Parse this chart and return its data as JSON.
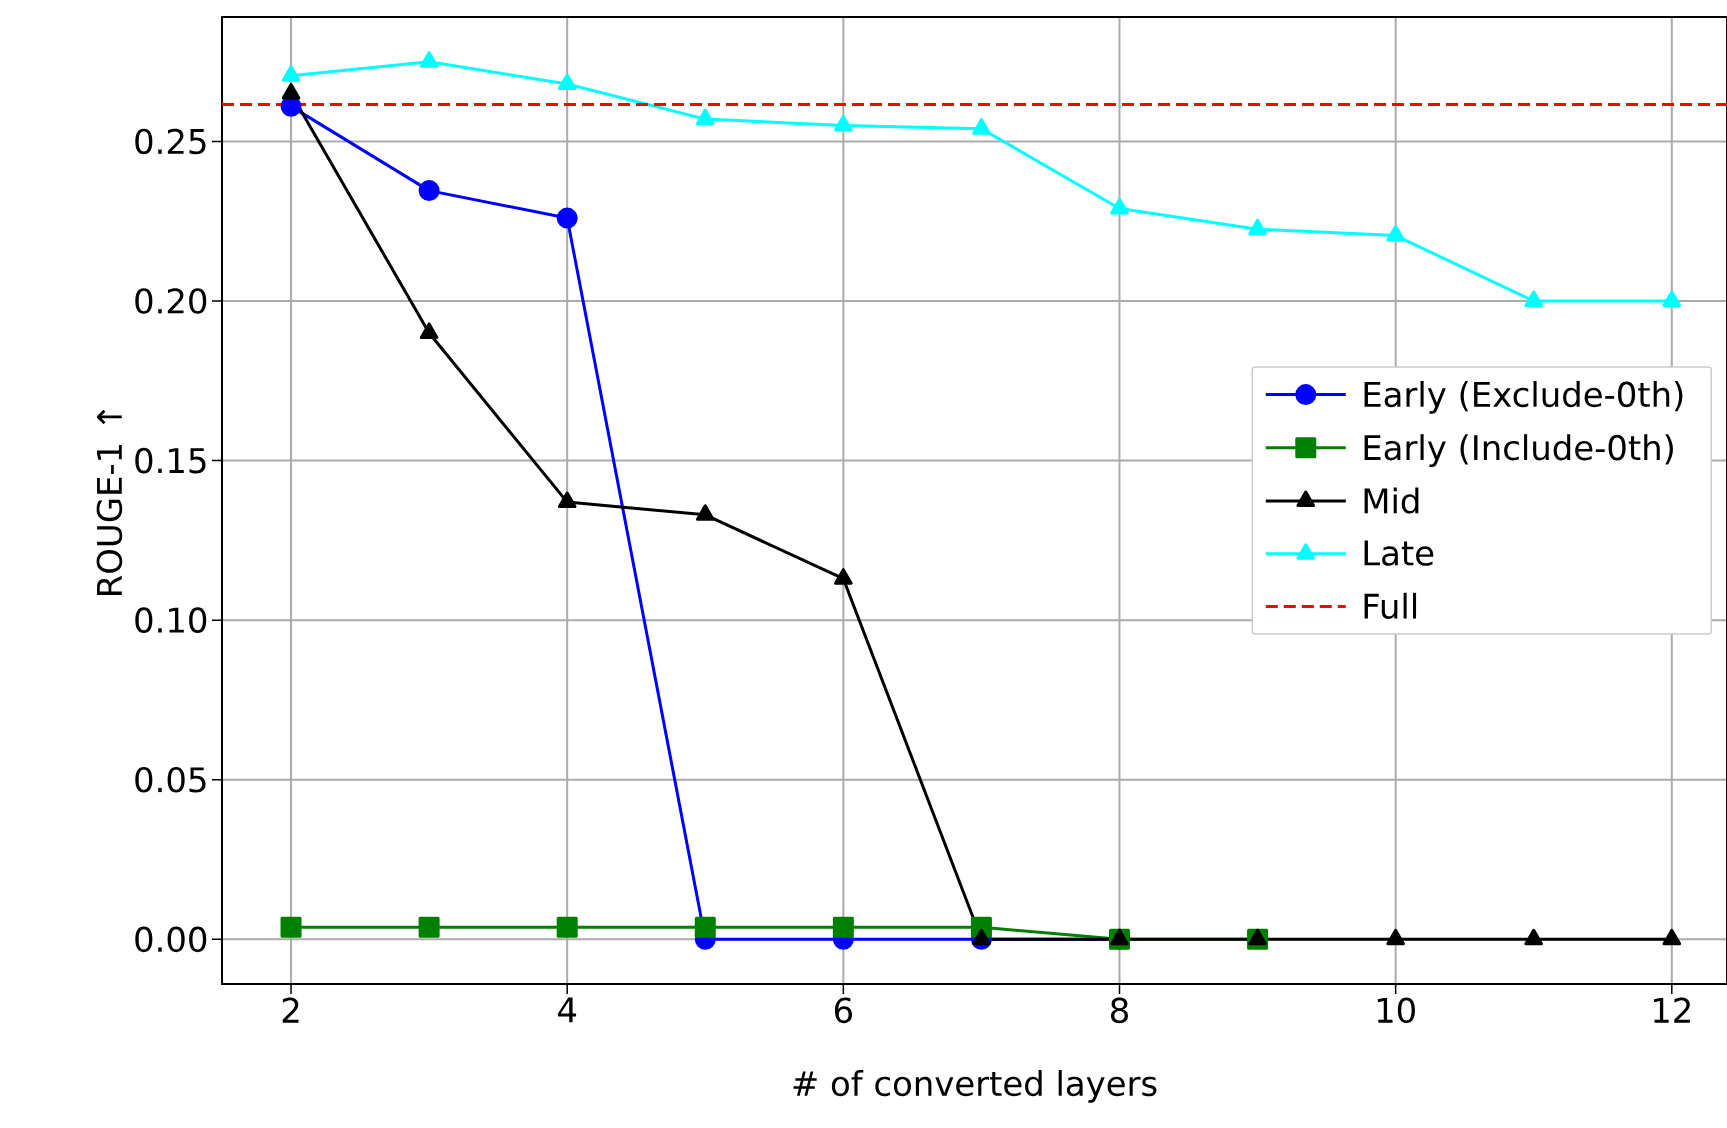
{
  "chart_data": {
    "type": "line",
    "xlabel": "# of converted layers",
    "ylabel": "ROUGE-1 ↑",
    "x": [
      2,
      3,
      4,
      5,
      6,
      7,
      8,
      9,
      10,
      11,
      12
    ],
    "series": [
      {
        "name": "Early (Exclude-0th)",
        "color": "#0000ff",
        "marker": "circle",
        "values": [
          0.261,
          0.2346,
          0.226,
          0,
          0,
          0,
          0,
          null,
          null,
          null,
          null
        ]
      },
      {
        "name": "Early (Include-0th)",
        "color": "#008000",
        "marker": "square",
        "values": [
          0.0038,
          0.0038,
          0.0038,
          0.0038,
          0.0038,
          0.0038,
          0,
          0,
          null,
          null,
          null
        ]
      },
      {
        "name": "Mid",
        "color": "#000000",
        "marker": "triangle",
        "values": [
          0.265,
          0.19,
          0.137,
          0.133,
          0.113,
          0,
          0,
          0,
          0,
          0,
          0
        ]
      },
      {
        "name": "Late",
        "color": "#00ffff",
        "marker": "triangle",
        "values": [
          0.2706,
          0.275,
          0.268,
          0.257,
          0.255,
          0.254,
          0.229,
          0.2225,
          0.2205,
          0.2,
          0.2
        ]
      }
    ],
    "ref_lines": [
      {
        "axis": "y",
        "value": 0.2616,
        "label": "Full",
        "color": "#ff0000",
        "line_style": "dashed"
      }
    ],
    "xlim": [
      1.5,
      12.4
    ],
    "ylim": [
      -0.014,
      0.289
    ],
    "xticks": [
      2,
      4,
      6,
      8,
      10,
      12
    ],
    "yticks": [
      {
        "value": 0,
        "label": "0.00"
      },
      {
        "value": 0.05,
        "label": "0.05"
      },
      {
        "value": 0.1,
        "label": "0.10"
      },
      {
        "value": 0.15,
        "label": "0.15"
      },
      {
        "value": 0.2,
        "label": "0.20"
      },
      {
        "value": 0.25,
        "label": "0.25"
      }
    ],
    "grid": true,
    "legend": "right",
    "line_style": "solid"
  }
}
